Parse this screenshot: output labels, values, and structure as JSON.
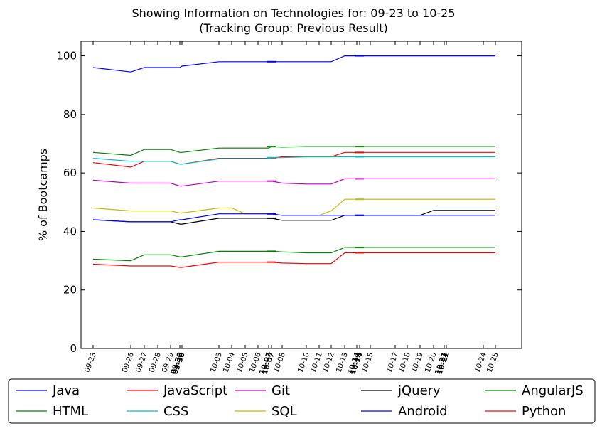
{
  "chart_data": {
    "type": "line",
    "title": "Showing Information on Technologies for: 09-23 to 10-25",
    "subtitle": "(Tracking Group: Previous Result)",
    "ylabel": "% of Bootcamps",
    "xlabel": "",
    "ylim": [
      0,
      105
    ],
    "yticks": [
      0,
      20,
      40,
      60,
      80,
      100
    ],
    "grid": false,
    "legend_position": "bottom",
    "categories": [
      "09-23",
      "09-26",
      "09-27",
      "09-28",
      "09-29",
      "09-30",
      "09-30",
      "10-03",
      "10-04",
      "10-05",
      "10-06",
      "10-07",
      "10-07",
      "10-08",
      "10-10",
      "10-11",
      "10-12",
      "10-13",
      "10-14",
      "10-14",
      "10-15",
      "10-17",
      "10-18",
      "10-19",
      "10-20",
      "10-21",
      "10-21",
      "10-24",
      "10-25"
    ],
    "bold_ticks": [
      "09-30",
      "10-07",
      "10-14",
      "10-21"
    ],
    "series": [
      {
        "name": "Java",
        "color": "#0000ff",
        "values": [
          96,
          94.5,
          96,
          96,
          96,
          96,
          96.5,
          98,
          98,
          98,
          98,
          98,
          98,
          98,
          98,
          98,
          98,
          100,
          100,
          100,
          100,
          100,
          100,
          100,
          100,
          100,
          100,
          100,
          100
        ]
      },
      {
        "name": "HTML",
        "color": "#008000",
        "values": [
          67,
          66,
          68,
          68,
          68,
          67,
          67,
          68.5,
          68.5,
          68.5,
          68.5,
          68.5,
          69,
          68.8,
          69,
          69,
          69,
          69,
          69,
          69,
          69,
          69,
          69,
          69,
          69,
          69,
          69,
          69,
          69
        ]
      },
      {
        "name": "JavaScript",
        "color": "#ff0000",
        "values": [
          63.5,
          62,
          64,
          64,
          64,
          63,
          63,
          65,
          65,
          65,
          65,
          65,
          65,
          65.5,
          65.5,
          65.5,
          65.5,
          67,
          67,
          67,
          67,
          67,
          67,
          67,
          67,
          67,
          67,
          67,
          67
        ]
      },
      {
        "name": "CSS",
        "color": "#00bfbf",
        "values": [
          65,
          64,
          64,
          64,
          64,
          63,
          63,
          64.8,
          64.8,
          64.8,
          64.8,
          64.8,
          65.2,
          65.2,
          65.5,
          65.5,
          65.5,
          65.5,
          65.5,
          65.5,
          65.5,
          65.5,
          65.5,
          65.5,
          65.5,
          65.5,
          65.5,
          65.5,
          65.5
        ]
      },
      {
        "name": "Git",
        "color": "#bf00bf",
        "values": [
          57.5,
          56.5,
          56.5,
          56.5,
          56.5,
          55.5,
          55.5,
          57.2,
          57.2,
          57.2,
          57.2,
          57.2,
          57.2,
          56.5,
          56.2,
          56.2,
          56.2,
          58,
          58,
          58,
          58,
          58,
          58,
          58,
          58,
          58,
          58,
          58,
          58
        ]
      },
      {
        "name": "SQL",
        "color": "#bfbf00",
        "values": [
          48,
          47,
          47,
          47,
          47,
          46.3,
          46.3,
          48,
          48,
          46,
          46,
          46,
          46,
          45.5,
          45.5,
          45.5,
          47,
          51,
          51,
          51,
          51,
          51,
          51,
          51,
          51,
          51,
          51,
          51,
          51
        ]
      },
      {
        "name": "jQuery",
        "color": "#000000",
        "values": [
          44,
          43.3,
          43.3,
          43.3,
          43.3,
          42.5,
          42.5,
          44.5,
          44.5,
          44.5,
          44.5,
          44.5,
          44.5,
          43.8,
          43.8,
          43.8,
          43.8,
          45.5,
          45.5,
          45.5,
          45.5,
          45.5,
          45.5,
          45.5,
          47.2,
          47.2,
          47.2,
          47.2,
          47.2
        ]
      },
      {
        "name": "Android",
        "color": "#0000ff",
        "values": [
          44,
          43.3,
          43.3,
          43.3,
          43.3,
          44,
          44,
          46,
          46,
          46,
          46,
          46,
          46,
          45.5,
          45.5,
          45.5,
          45.5,
          45.5,
          45.5,
          45.5,
          45.5,
          45.5,
          45.5,
          45.5,
          45.5,
          45.5,
          45.5,
          45.5,
          45.5
        ]
      },
      {
        "name": "AngularJS",
        "color": "#008000",
        "values": [
          30.5,
          30,
          32,
          32,
          32,
          31.3,
          31.3,
          33.2,
          33.2,
          33.2,
          33.2,
          33.2,
          33.2,
          33,
          32.7,
          32.7,
          32.7,
          34.5,
          34.5,
          34.5,
          34.5,
          34.5,
          34.5,
          34.5,
          34.5,
          34.5,
          34.5,
          34.5,
          34.5
        ]
      },
      {
        "name": "Python",
        "color": "#ff0000",
        "values": [
          28.8,
          28.2,
          28.2,
          28.2,
          28.2,
          27.7,
          27.7,
          29.5,
          29.5,
          29.5,
          29.5,
          29.5,
          29.5,
          29.2,
          29,
          29,
          29,
          32.7,
          32.7,
          32.7,
          32.7,
          32.7,
          32.7,
          32.7,
          32.7,
          32.7,
          32.7,
          32.7,
          32.7
        ]
      }
    ],
    "legend": {
      "columns": 5,
      "order": [
        "Java",
        "HTML",
        "JavaScript",
        "CSS",
        "Git",
        "SQL",
        "jQuery",
        "Android",
        "AngularJS",
        "Python"
      ]
    }
  }
}
